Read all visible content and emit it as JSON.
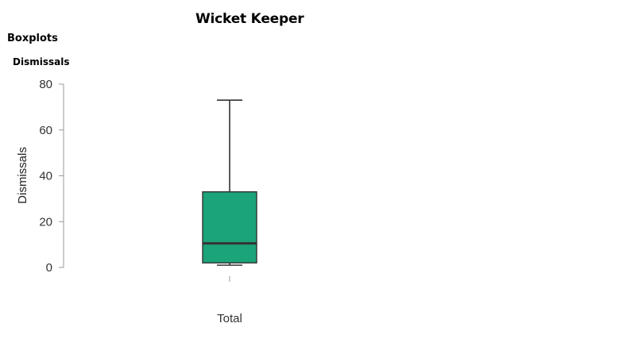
{
  "page": {
    "title": "Wicket Keeper",
    "section": "Boxplots",
    "subsection": "Dismissals"
  },
  "colors": {
    "box_fill": "#1ba37a",
    "stroke": "#333333"
  },
  "chart_data": {
    "type": "boxplot",
    "title": "",
    "ylabel": "Dismissals",
    "xlabel": "",
    "ylim": [
      0,
      80
    ],
    "yticks": [
      0,
      20,
      40,
      60,
      80
    ],
    "grid": false,
    "categories": [
      "Total"
    ],
    "boxes": [
      {
        "category": "Total",
        "min": 1,
        "q1": 2,
        "median": 10.5,
        "q3": 33,
        "max": 73
      }
    ]
  }
}
